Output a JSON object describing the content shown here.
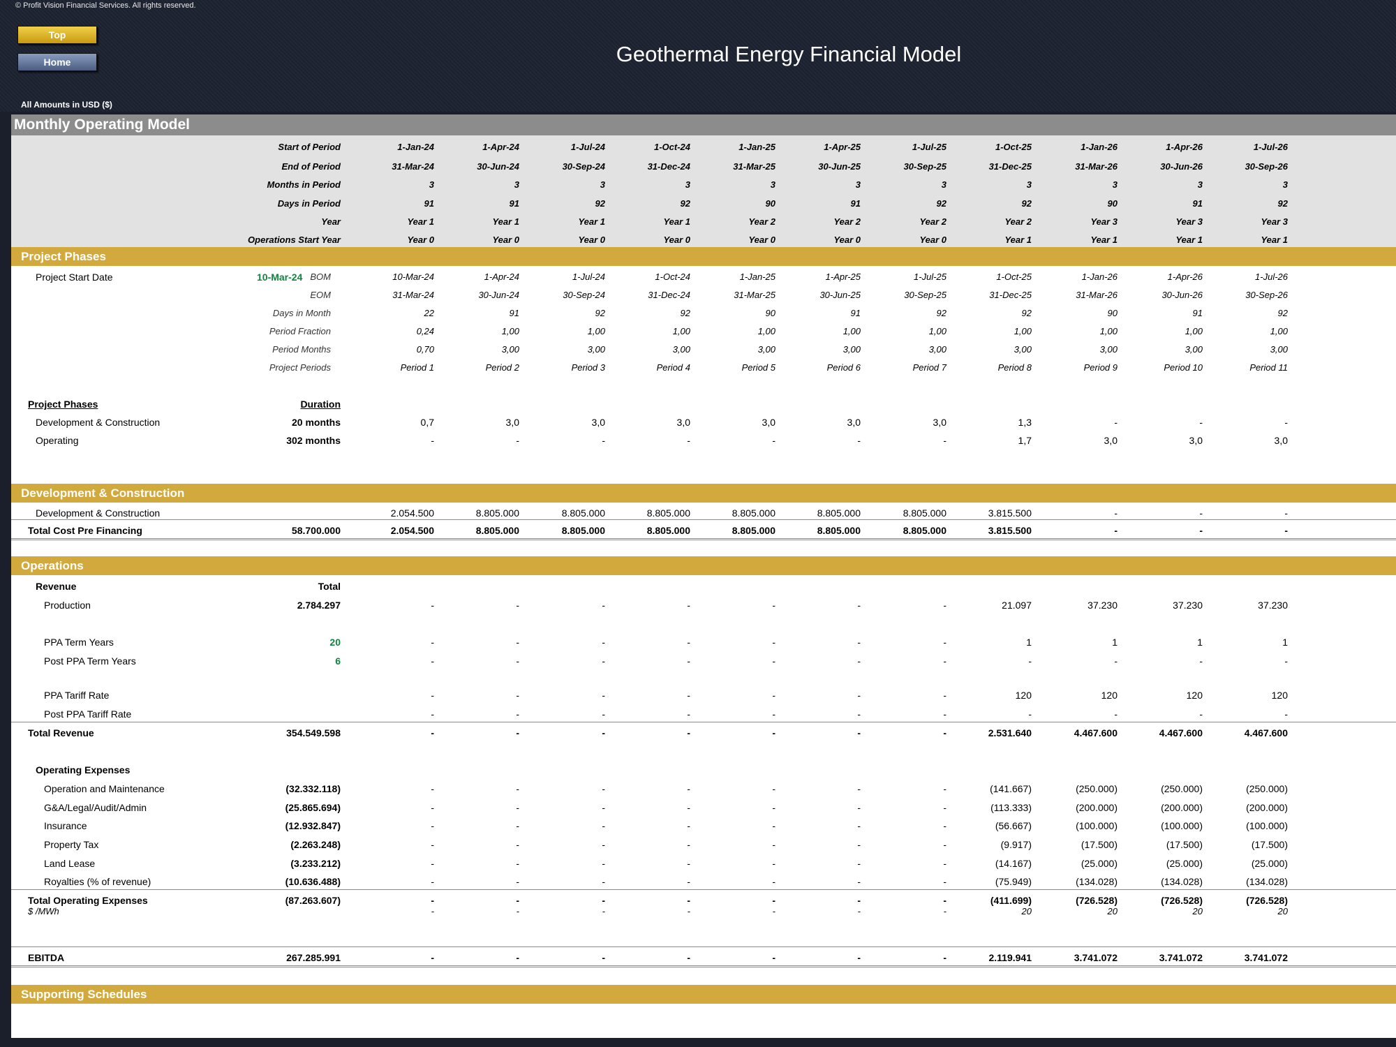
{
  "copyright": "© Profit Vision Financial Services. All rights reserved.",
  "nav": {
    "top": "Top",
    "home": "Home"
  },
  "title": "Geothermal Energy Financial Model",
  "amounts": "All Amounts in  USD ($)",
  "model_title": "Monthly Operating Model",
  "header_rows": [
    {
      "label": "Start of Period",
      "values": [
        "1-Jan-24",
        "1-Apr-24",
        "1-Jul-24",
        "1-Oct-24",
        "1-Jan-25",
        "1-Apr-25",
        "1-Jul-25",
        "1-Oct-25",
        "1-Jan-26",
        "1-Apr-26",
        "1-Jul-26"
      ]
    },
    {
      "label": "End of Period",
      "values": [
        "31-Mar-24",
        "30-Jun-24",
        "30-Sep-24",
        "31-Dec-24",
        "31-Mar-25",
        "30-Jun-25",
        "30-Sep-25",
        "31-Dec-25",
        "31-Mar-26",
        "30-Jun-26",
        "30-Sep-26"
      ]
    },
    {
      "label": "Months in Period",
      "values": [
        "3",
        "3",
        "3",
        "3",
        "3",
        "3",
        "3",
        "3",
        "3",
        "3",
        "3"
      ]
    },
    {
      "label": "Days in Period",
      "values": [
        "91",
        "91",
        "92",
        "92",
        "90",
        "91",
        "92",
        "92",
        "90",
        "91",
        "92"
      ]
    },
    {
      "label": "Year",
      "values": [
        "Year 1",
        "Year 1",
        "Year 1",
        "Year 1",
        "Year 2",
        "Year 2",
        "Year 2",
        "Year 2",
        "Year 3",
        "Year 3",
        "Year 3"
      ]
    },
    {
      "label": "Operations Start Year",
      "values": [
        "Year 0",
        "Year 0",
        "Year 0",
        "Year 0",
        "Year 0",
        "Year 0",
        "Year 0",
        "Year 1",
        "Year 1",
        "Year 1",
        "Year 1"
      ]
    }
  ],
  "project_phases": {
    "title": "Project Phases",
    "start_label": "Project Start Date",
    "start_value": "10-Mar-24",
    "rows": [
      {
        "label": "BOM",
        "values": [
          "10-Mar-24",
          "1-Apr-24",
          "1-Jul-24",
          "1-Oct-24",
          "1-Jan-25",
          "1-Apr-25",
          "1-Jul-25",
          "1-Oct-25",
          "1-Jan-26",
          "1-Apr-26",
          "1-Jul-26"
        ]
      },
      {
        "label": "EOM",
        "values": [
          "31-Mar-24",
          "30-Jun-24",
          "30-Sep-24",
          "31-Dec-24",
          "31-Mar-25",
          "30-Jun-25",
          "30-Sep-25",
          "31-Dec-25",
          "31-Mar-26",
          "30-Jun-26",
          "30-Sep-26"
        ]
      },
      {
        "label": "Days in Month",
        "values": [
          "22",
          "91",
          "92",
          "92",
          "90",
          "91",
          "92",
          "92",
          "90",
          "91",
          "92"
        ]
      },
      {
        "label": "Period Fraction",
        "values": [
          "0,24",
          "1,00",
          "1,00",
          "1,00",
          "1,00",
          "1,00",
          "1,00",
          "1,00",
          "1,00",
          "1,00",
          "1,00"
        ]
      },
      {
        "label": "Period Months",
        "values": [
          "0,70",
          "3,00",
          "3,00",
          "3,00",
          "3,00",
          "3,00",
          "3,00",
          "3,00",
          "3,00",
          "3,00",
          "3,00"
        ]
      },
      {
        "label": "Project Periods",
        "values": [
          "Period 1",
          "Period 2",
          "Period 3",
          "Period 4",
          "Period 5",
          "Period 6",
          "Period 7",
          "Period 8",
          "Period 9",
          "Period 10",
          "Period 11"
        ]
      }
    ],
    "phases_header": "Project Phases",
    "duration_header": "Duration",
    "phases": [
      {
        "label": "Development & Construction",
        "duration": "20 months",
        "values": [
          "0,7",
          "3,0",
          "3,0",
          "3,0",
          "3,0",
          "3,0",
          "3,0",
          "1,3",
          "-",
          "-",
          "-"
        ]
      },
      {
        "label": "Operating",
        "duration": "302 months",
        "values": [
          "-",
          "-",
          "-",
          "-",
          "-",
          "-",
          "-",
          "1,7",
          "3,0",
          "3,0",
          "3,0"
        ]
      }
    ]
  },
  "development": {
    "title": "Development & Construction",
    "row": {
      "label": "Development & Construction",
      "values": [
        "2.054.500",
        "8.805.000",
        "8.805.000",
        "8.805.000",
        "8.805.000",
        "8.805.000",
        "8.805.000",
        "3.815.500",
        "-",
        "-",
        "-"
      ]
    },
    "total": {
      "label": "Total Cost Pre Financing",
      "total": "58.700.000",
      "values": [
        "2.054.500",
        "8.805.000",
        "8.805.000",
        "8.805.000",
        "8.805.000",
        "8.805.000",
        "8.805.000",
        "3.815.500",
        "-",
        "-",
        "-"
      ]
    }
  },
  "operations": {
    "title": "Operations",
    "revenue_label": "Revenue",
    "total_header": "Total",
    "production": {
      "label": "Production",
      "total": "2.784.297",
      "values": [
        "-",
        "-",
        "-",
        "-",
        "-",
        "-",
        "-",
        "21.097",
        "37.230",
        "37.230",
        "37.230"
      ]
    },
    "ppa_term": {
      "label": "PPA Term Years",
      "total": "20",
      "values": [
        "-",
        "-",
        "-",
        "-",
        "-",
        "-",
        "-",
        "1",
        "1",
        "1",
        "1"
      ]
    },
    "post_ppa_term": {
      "label": "Post PPA Term Years",
      "total": "6",
      "values": [
        "-",
        "-",
        "-",
        "-",
        "-",
        "-",
        "-",
        "-",
        "-",
        "-",
        "-"
      ]
    },
    "ppa_tariff": {
      "label": "PPA Tariff Rate",
      "values": [
        "-",
        "-",
        "-",
        "-",
        "-",
        "-",
        "-",
        "120",
        "120",
        "120",
        "120"
      ]
    },
    "post_ppa_tariff": {
      "label": "Post PPA Tariff Rate",
      "values": [
        "-",
        "-",
        "-",
        "-",
        "-",
        "-",
        "-",
        "-",
        "-",
        "-",
        "-"
      ]
    },
    "total_revenue": {
      "label": "Total Revenue",
      "total": "354.549.598",
      "values": [
        "-",
        "-",
        "-",
        "-",
        "-",
        "-",
        "-",
        "2.531.640",
        "4.467.600",
        "4.467.600",
        "4.467.600"
      ]
    },
    "opex_label": "Operating Expenses",
    "opex": [
      {
        "label": "Operation and Maintenance",
        "total": "(32.332.118)",
        "values": [
          "-",
          "-",
          "-",
          "-",
          "-",
          "-",
          "-",
          "(141.667)",
          "(250.000)",
          "(250.000)",
          "(250.000)"
        ]
      },
      {
        "label": "G&A/Legal/Audit/Admin",
        "total": "(25.865.694)",
        "values": [
          "-",
          "-",
          "-",
          "-",
          "-",
          "-",
          "-",
          "(113.333)",
          "(200.000)",
          "(200.000)",
          "(200.000)"
        ]
      },
      {
        "label": "Insurance",
        "total": "(12.932.847)",
        "values": [
          "-",
          "-",
          "-",
          "-",
          "-",
          "-",
          "-",
          "(56.667)",
          "(100.000)",
          "(100.000)",
          "(100.000)"
        ]
      },
      {
        "label": "Property Tax",
        "total": "(2.263.248)",
        "values": [
          "-",
          "-",
          "-",
          "-",
          "-",
          "-",
          "-",
          "(9.917)",
          "(17.500)",
          "(17.500)",
          "(17.500)"
        ]
      },
      {
        "label": "Land Lease",
        "total": "(3.233.212)",
        "values": [
          "-",
          "-",
          "-",
          "-",
          "-",
          "-",
          "-",
          "(14.167)",
          "(25.000)",
          "(25.000)",
          "(25.000)"
        ]
      },
      {
        "label": "Royalties (% of revenue)",
        "total": "(10.636.488)",
        "values": [
          "-",
          "-",
          "-",
          "-",
          "-",
          "-",
          "-",
          "(75.949)",
          "(134.028)",
          "(134.028)",
          "(134.028)"
        ]
      }
    ],
    "total_opex": {
      "label": "Total Operating Expenses",
      "total": "(87.263.607)",
      "values": [
        "-",
        "-",
        "-",
        "-",
        "-",
        "-",
        "-",
        "(411.699)",
        "(726.528)",
        "(726.528)",
        "(726.528)"
      ]
    },
    "per_mwh": {
      "label": "$ /MWh",
      "values": [
        "-",
        "-",
        "-",
        "-",
        "-",
        "-",
        "-",
        "20",
        "20",
        "20",
        "20"
      ]
    },
    "ebitda": {
      "label": "EBITDA",
      "total": "267.285.991",
      "values": [
        "-",
        "-",
        "-",
        "-",
        "-",
        "-",
        "-",
        "2.119.941",
        "3.741.072",
        "3.741.072",
        "3.741.072"
      ]
    }
  },
  "supporting": {
    "title": "Supporting Schedules"
  },
  "colors": {
    "gold": "#d2a93c",
    "grey_bar": "#8c8c8c",
    "header_bg": "#e2e2e2",
    "green": "#11843f",
    "dark_bg": "#1c2130"
  }
}
